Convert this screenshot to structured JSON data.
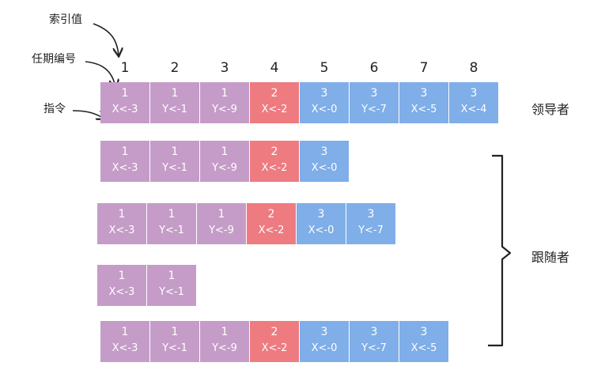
{
  "annotations": {
    "index_label": "索引值",
    "term_label": "任期编号",
    "command_label": "指令"
  },
  "index_values": [
    "1",
    "2",
    "3",
    "4",
    "5",
    "6",
    "7",
    "8"
  ],
  "roles": {
    "leader": "领导者",
    "follower": "跟随者"
  },
  "colors": {
    "term1": "#c59cc8",
    "term2": "#ee7b80",
    "term3": "#7faee8"
  },
  "logs": [
    {
      "role": "leader",
      "entries": [
        {
          "term": "1",
          "cmd": "X<-3"
        },
        {
          "term": "1",
          "cmd": "Y<-1"
        },
        {
          "term": "1",
          "cmd": "Y<-9"
        },
        {
          "term": "2",
          "cmd": "X<-2"
        },
        {
          "term": "3",
          "cmd": "X<-0"
        },
        {
          "term": "3",
          "cmd": "Y<-7"
        },
        {
          "term": "3",
          "cmd": "X<-5"
        },
        {
          "term": "3",
          "cmd": "X<-4"
        }
      ]
    },
    {
      "role": "follower",
      "entries": [
        {
          "term": "1",
          "cmd": "X<-3"
        },
        {
          "term": "1",
          "cmd": "Y<-1"
        },
        {
          "term": "1",
          "cmd": "Y<-9"
        },
        {
          "term": "2",
          "cmd": "X<-2"
        },
        {
          "term": "3",
          "cmd": "X<-0"
        }
      ]
    },
    {
      "role": "follower",
      "entries": [
        {
          "term": "1",
          "cmd": "X<-3"
        },
        {
          "term": "1",
          "cmd": "Y<-1"
        },
        {
          "term": "1",
          "cmd": "Y<-9"
        },
        {
          "term": "2",
          "cmd": "X<-2"
        },
        {
          "term": "3",
          "cmd": "X<-0"
        },
        {
          "term": "3",
          "cmd": "Y<-7"
        }
      ]
    },
    {
      "role": "follower",
      "entries": [
        {
          "term": "1",
          "cmd": "X<-3"
        },
        {
          "term": "1",
          "cmd": "Y<-1"
        }
      ]
    },
    {
      "role": "follower",
      "entries": [
        {
          "term": "1",
          "cmd": "X<-3"
        },
        {
          "term": "1",
          "cmd": "Y<-1"
        },
        {
          "term": "1",
          "cmd": "Y<-9"
        },
        {
          "term": "2",
          "cmd": "X<-2"
        },
        {
          "term": "3",
          "cmd": "X<-0"
        },
        {
          "term": "3",
          "cmd": "Y<-7"
        },
        {
          "term": "3",
          "cmd": "X<-5"
        }
      ]
    }
  ]
}
